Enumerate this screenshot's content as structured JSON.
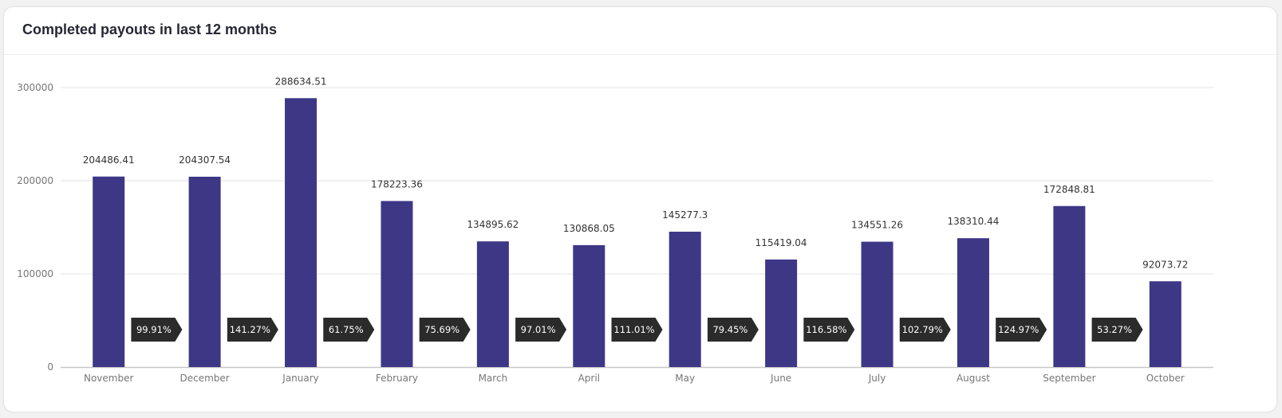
{
  "card": {
    "title": "Completed payouts in last 12 months"
  },
  "chart_data": {
    "type": "bar",
    "title": "Completed payouts in last 12 months",
    "categories": [
      "November",
      "December",
      "January",
      "February",
      "March",
      "April",
      "May",
      "June",
      "July",
      "August",
      "September",
      "October"
    ],
    "values": [
      204486.41,
      204307.54,
      288634.51,
      178223.36,
      134895.62,
      130868.05,
      145277.3,
      115419.04,
      134551.26,
      138310.44,
      172848.81,
      92073.72
    ],
    "value_labels": [
      "204486.41",
      "204307.54",
      "288634.51",
      "178223.36",
      "134895.62",
      "130868.05",
      "145277.3",
      "115419.04",
      "134551.26",
      "138310.44",
      "172848.81",
      "92073.72"
    ],
    "change_labels": [
      "99.91%",
      "141.27%",
      "61.75%",
      "75.69%",
      "97.01%",
      "111.01%",
      "79.45%",
      "116.58%",
      "102.79%",
      "124.97%",
      "53.27%"
    ],
    "yticks": [
      0,
      100000,
      200000,
      300000
    ],
    "ylim": [
      0,
      300000
    ],
    "grid": true,
    "xlabel": "",
    "ylabel": "",
    "colors": {
      "bar": "#3d3786",
      "badge": "#2b2b2b",
      "badge_text": "#ffffff",
      "grid": "#e3e3e3",
      "axis": "#c8c8c8"
    }
  }
}
